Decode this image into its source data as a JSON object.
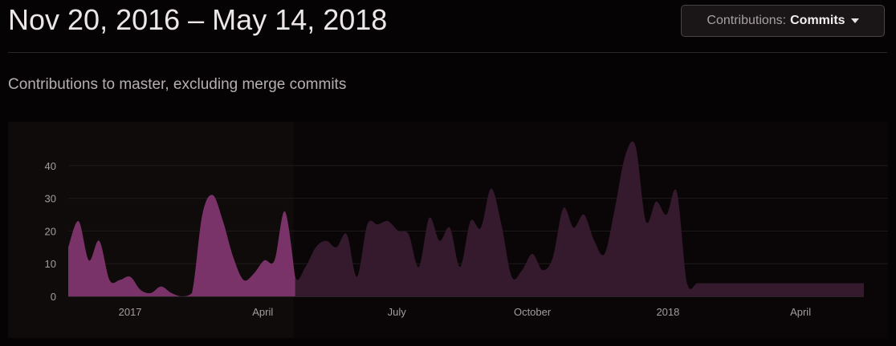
{
  "header": {
    "date_range": "Nov 20, 2016 – May 14, 2018",
    "dropdown": {
      "label": "Contributions:",
      "value": "Commits"
    }
  },
  "subtitle": "Contributions to master, excluding merge commits",
  "colors": {
    "background": "#060304",
    "selected_fill": "#7a3368",
    "unselected_fill": "#341a2c",
    "selection_window": "#100b0b",
    "grid": "#1f1a1c",
    "tick_text": "#a49ca0"
  },
  "chart_data": {
    "type": "area",
    "title": "",
    "xlabel": "",
    "ylabel": "",
    "ylim": [
      0,
      50
    ],
    "grid": true,
    "y_ticks": [
      "0",
      "10",
      "20",
      "30",
      "40"
    ],
    "x_tick_labels": [
      {
        "label": "2017",
        "date": "2017-01-01"
      },
      {
        "label": "April",
        "date": "2017-04-01"
      },
      {
        "label": "July",
        "date": "2017-07-01"
      },
      {
        "label": "October",
        "date": "2017-10-01"
      },
      {
        "label": "2018",
        "date": "2018-01-01"
      },
      {
        "label": "April",
        "date": "2018-04-01"
      }
    ],
    "selected_range": [
      "2016-11-20",
      "2017-04-23"
    ],
    "series": [
      {
        "x": [
          "2016-11-20",
          "2016-11-27",
          "2016-12-04",
          "2016-12-11",
          "2016-12-18",
          "2016-12-25",
          "2017-01-01",
          "2017-01-08",
          "2017-01-15",
          "2017-01-22",
          "2017-01-29",
          "2017-02-05",
          "2017-02-12",
          "2017-02-19",
          "2017-02-26",
          "2017-03-05",
          "2017-03-12",
          "2017-03-19",
          "2017-03-26",
          "2017-04-02",
          "2017-04-09",
          "2017-04-16",
          "2017-04-23",
          "2017-04-30",
          "2017-05-07",
          "2017-05-14",
          "2017-05-21",
          "2017-05-28",
          "2017-06-04",
          "2017-06-11",
          "2017-06-18",
          "2017-06-25",
          "2017-07-02",
          "2017-07-09",
          "2017-07-16",
          "2017-07-23",
          "2017-07-30",
          "2017-08-06",
          "2017-08-13",
          "2017-08-20",
          "2017-08-27",
          "2017-09-03",
          "2017-09-10",
          "2017-09-17",
          "2017-09-24",
          "2017-10-01",
          "2017-10-08",
          "2017-10-15",
          "2017-10-22",
          "2017-10-29",
          "2017-11-05",
          "2017-11-12",
          "2017-11-19",
          "2017-11-26",
          "2017-12-03",
          "2017-12-10",
          "2017-12-17",
          "2017-12-24",
          "2017-12-31",
          "2018-01-07",
          "2018-01-14",
          "2018-01-21",
          "2018-01-28",
          "2018-02-04",
          "2018-02-11",
          "2018-02-18",
          "2018-02-25",
          "2018-03-04",
          "2018-03-11",
          "2018-03-18",
          "2018-03-25",
          "2018-04-01",
          "2018-04-08",
          "2018-04-15",
          "2018-04-22",
          "2018-04-29",
          "2018-05-06",
          "2018-05-14"
        ],
        "values": [
          15,
          23,
          11,
          17,
          5,
          5,
          6,
          2,
          1,
          3,
          1,
          0,
          1,
          25,
          31,
          23,
          12,
          5,
          7,
          11,
          11,
          26,
          6,
          9,
          15,
          17,
          15,
          19,
          6,
          22,
          22,
          23,
          20,
          19,
          9,
          24,
          17,
          21,
          9,
          23,
          21,
          33,
          22,
          6,
          8,
          13,
          8,
          12,
          27,
          21,
          25,
          17,
          13,
          27,
          43,
          46,
          23,
          29,
          25,
          32,
          4,
          4,
          4,
          4,
          4,
          4,
          4,
          4,
          4,
          4,
          4,
          4,
          4,
          4,
          4,
          4,
          4,
          4
        ]
      }
    ]
  }
}
